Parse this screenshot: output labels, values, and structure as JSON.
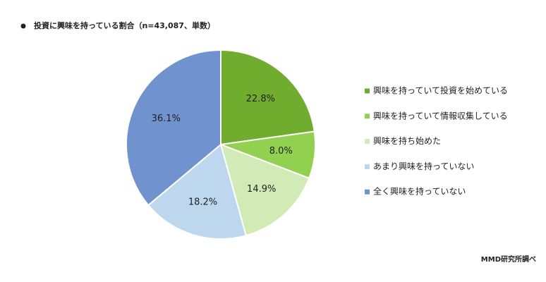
{
  "chart_data": {
    "type": "pie",
    "title": "投資に興味を持っている割合（n=43,087、単数）",
    "categories": [
      "興味を持っていて投資を始めている",
      "興味を持っていて情報収集している",
      "興味を持ち始めた",
      "あまり興味を持っていない",
      "全く興味を持っていない"
    ],
    "values": [
      22.8,
      8.0,
      14.9,
      18.2,
      36.1
    ],
    "value_labels": [
      "22.8%",
      "8.0%",
      "14.9%",
      "18.2%",
      "36.1%"
    ],
    "colors": [
      "#70ad2f",
      "#92d050",
      "#d2eab5",
      "#bdd7ee",
      "#7092cf"
    ],
    "source": "MMD研究所調べ"
  }
}
